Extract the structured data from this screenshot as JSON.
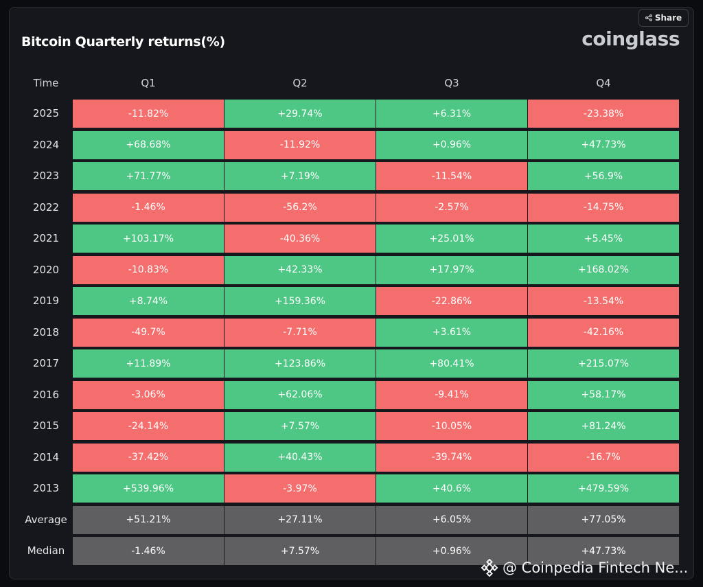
{
  "header": {
    "title": "Bitcoin Quarterly returns(%)",
    "brand": "coinglass",
    "share_label": "Share"
  },
  "watermark": {
    "text": "@ Coinpedia Fintech Ne...",
    "icon": "binance-diamond-icon"
  },
  "colors": {
    "positive": "#4ec785",
    "negative": "#f46e6e",
    "summary": "#5f5f61"
  },
  "chart_data": {
    "type": "table",
    "title": "Bitcoin Quarterly returns(%)",
    "row_header": "Time",
    "columns": [
      "Q1",
      "Q2",
      "Q3",
      "Q4"
    ],
    "rows": [
      {
        "label": "2025",
        "values": [
          "-11.82%",
          "+29.74%",
          "+6.31%",
          "-23.38%"
        ]
      },
      {
        "label": "2024",
        "values": [
          "+68.68%",
          "-11.92%",
          "+0.96%",
          "+47.73%"
        ]
      },
      {
        "label": "2023",
        "values": [
          "+71.77%",
          "+7.19%",
          "-11.54%",
          "+56.9%"
        ]
      },
      {
        "label": "2022",
        "values": [
          "-1.46%",
          "-56.2%",
          "-2.57%",
          "-14.75%"
        ]
      },
      {
        "label": "2021",
        "values": [
          "+103.17%",
          "-40.36%",
          "+25.01%",
          "+5.45%"
        ]
      },
      {
        "label": "2020",
        "values": [
          "-10.83%",
          "+42.33%",
          "+17.97%",
          "+168.02%"
        ]
      },
      {
        "label": "2019",
        "values": [
          "+8.74%",
          "+159.36%",
          "-22.86%",
          "-13.54%"
        ]
      },
      {
        "label": "2018",
        "values": [
          "-49.7%",
          "-7.71%",
          "+3.61%",
          "-42.16%"
        ]
      },
      {
        "label": "2017",
        "values": [
          "+11.89%",
          "+123.86%",
          "+80.41%",
          "+215.07%"
        ]
      },
      {
        "label": "2016",
        "values": [
          "-3.06%",
          "+62.06%",
          "-9.41%",
          "+58.17%"
        ]
      },
      {
        "label": "2015",
        "values": [
          "-24.14%",
          "+7.57%",
          "-10.05%",
          "+81.24%"
        ]
      },
      {
        "label": "2014",
        "values": [
          "-37.42%",
          "+40.43%",
          "-39.74%",
          "-16.7%"
        ]
      },
      {
        "label": "2013",
        "values": [
          "+539.96%",
          "-3.97%",
          "+40.6%",
          "+479.59%"
        ]
      }
    ],
    "summary_rows": [
      {
        "label": "Average",
        "values": [
          "+51.21%",
          "+27.11%",
          "+6.05%",
          "+77.05%"
        ]
      },
      {
        "label": "Median",
        "values": [
          "-1.46%",
          "+7.57%",
          "+0.96%",
          "+47.73%"
        ]
      }
    ]
  }
}
